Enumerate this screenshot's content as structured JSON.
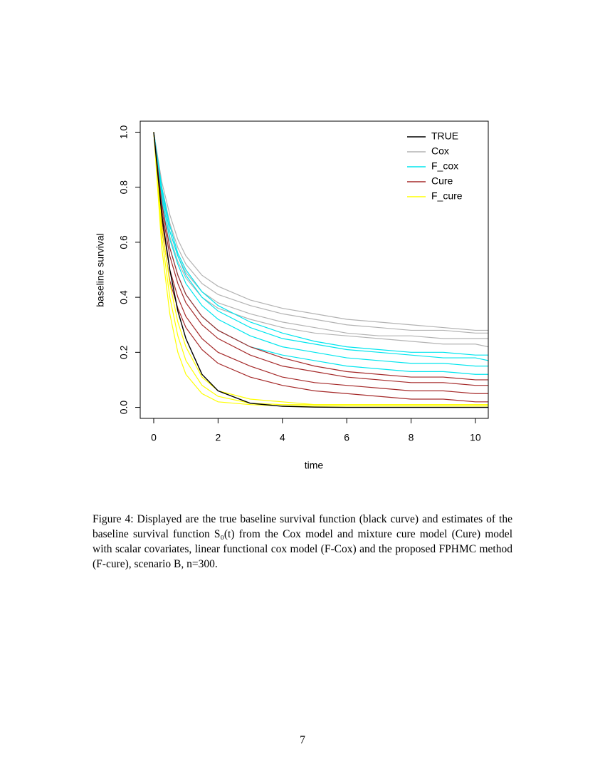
{
  "chart_data": {
    "type": "line",
    "xlabel": "time",
    "ylabel": "baseline survival",
    "x": [
      0,
      0.25,
      0.5,
      0.75,
      1,
      1.5,
      2,
      3,
      4,
      5,
      6,
      7,
      8,
      9,
      10,
      10.4
    ],
    "xlim": [
      -0.42,
      10.4
    ],
    "ylim": [
      -0.04,
      1.04
    ],
    "xticks": [
      0,
      2,
      4,
      6,
      8,
      10
    ],
    "yticks": [
      {
        "value": 0,
        "label": "0.0"
      },
      0.2,
      0.4,
      0.6,
      0.8,
      {
        "value": 1,
        "label": "1.0"
      }
    ],
    "legend": "topright",
    "series": [
      {
        "name": "TRUE",
        "color": "#000000",
        "curves": [
          [
            1,
            0.7,
            0.5,
            0.35,
            0.25,
            0.12,
            0.06,
            0.015,
            0.004,
            0.001,
            0,
            0,
            0,
            0,
            0,
            0
          ]
        ]
      },
      {
        "name": "Cox",
        "color": "#b3b3b3",
        "curves": [
          [
            1,
            0.8,
            0.67,
            0.58,
            0.52,
            0.45,
            0.41,
            0.37,
            0.34,
            0.32,
            0.3,
            0.29,
            0.28,
            0.28,
            0.27,
            0.27
          ],
          [
            1,
            0.78,
            0.64,
            0.55,
            0.49,
            0.42,
            0.38,
            0.34,
            0.31,
            0.29,
            0.27,
            0.26,
            0.26,
            0.25,
            0.25,
            0.25
          ],
          [
            1,
            0.76,
            0.62,
            0.53,
            0.47,
            0.4,
            0.36,
            0.32,
            0.29,
            0.27,
            0.26,
            0.25,
            0.24,
            0.23,
            0.23,
            0.22
          ],
          [
            1,
            0.82,
            0.7,
            0.61,
            0.55,
            0.48,
            0.44,
            0.39,
            0.36,
            0.34,
            0.32,
            0.31,
            0.3,
            0.29,
            0.28,
            0.28
          ]
        ]
      },
      {
        "name": "F_cox",
        "color": "#00e5ee",
        "curves": [
          [
            1,
            0.8,
            0.66,
            0.56,
            0.5,
            0.42,
            0.37,
            0.31,
            0.27,
            0.24,
            0.22,
            0.21,
            0.2,
            0.2,
            0.19,
            0.19
          ],
          [
            1,
            0.77,
            0.61,
            0.52,
            0.45,
            0.37,
            0.32,
            0.26,
            0.22,
            0.2,
            0.18,
            0.17,
            0.16,
            0.16,
            0.15,
            0.15
          ],
          [
            1,
            0.75,
            0.58,
            0.48,
            0.41,
            0.33,
            0.28,
            0.22,
            0.19,
            0.17,
            0.15,
            0.14,
            0.13,
            0.13,
            0.12,
            0.12
          ],
          [
            1,
            0.79,
            0.64,
            0.55,
            0.48,
            0.4,
            0.35,
            0.29,
            0.25,
            0.23,
            0.21,
            0.2,
            0.19,
            0.18,
            0.18,
            0.17
          ]
        ]
      },
      {
        "name": "Cure",
        "color": "#a52a2a",
        "curves": [
          [
            1,
            0.72,
            0.55,
            0.45,
            0.38,
            0.3,
            0.25,
            0.19,
            0.15,
            0.13,
            0.11,
            0.1,
            0.09,
            0.09,
            0.08,
            0.08
          ],
          [
            1,
            0.68,
            0.5,
            0.4,
            0.33,
            0.25,
            0.2,
            0.15,
            0.11,
            0.09,
            0.08,
            0.07,
            0.06,
            0.06,
            0.05,
            0.05
          ],
          [
            1,
            0.65,
            0.46,
            0.36,
            0.29,
            0.21,
            0.16,
            0.11,
            0.08,
            0.06,
            0.05,
            0.04,
            0.03,
            0.03,
            0.02,
            0.02
          ],
          [
            1,
            0.74,
            0.58,
            0.48,
            0.41,
            0.33,
            0.28,
            0.22,
            0.18,
            0.15,
            0.13,
            0.12,
            0.11,
            0.11,
            0.1,
            0.1
          ]
        ]
      },
      {
        "name": "F_cure",
        "color": "#ffff00",
        "curves": [
          [
            1,
            0.62,
            0.4,
            0.26,
            0.17,
            0.08,
            0.04,
            0.015,
            0.01,
            0.01,
            0.01,
            0.01,
            0.01,
            0.01,
            0.01,
            0.01
          ],
          [
            1,
            0.58,
            0.34,
            0.2,
            0.12,
            0.05,
            0.02,
            0.01,
            0.005,
            0.005,
            0.005,
            0.005,
            0.005,
            0.005,
            0.005,
            0.005
          ],
          [
            1,
            0.66,
            0.45,
            0.31,
            0.22,
            0.11,
            0.06,
            0.03,
            0.02,
            0.01,
            0.01,
            0.01,
            0.01,
            0.01,
            0.01,
            0.01
          ]
        ]
      }
    ]
  },
  "caption": "Figure 4: Displayed are the true baseline survival function (black curve) and estimates of the baseline survival function S₀(t) from the Cox model and mixture cure model (Cure) model with scalar covariates, linear functional cox model (F-Cox) and the proposed FPHMC method (F-cure), scenario B, n=300.",
  "page_number": "7"
}
